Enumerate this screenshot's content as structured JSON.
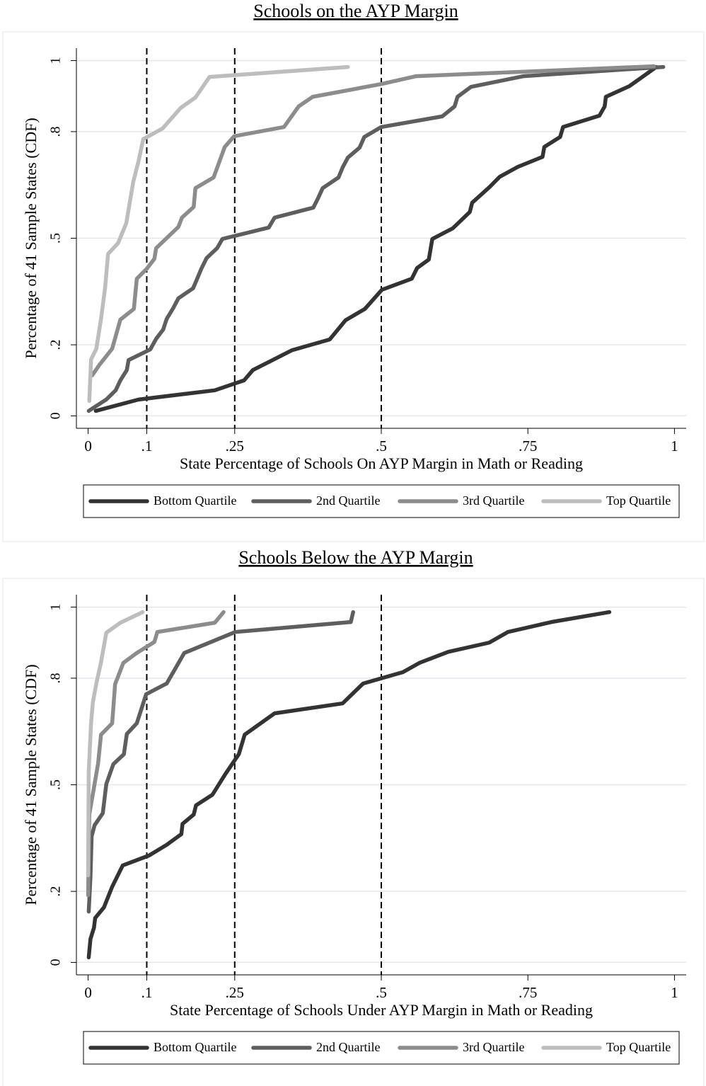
{
  "chart_data": [
    {
      "type": "line",
      "title": "Schools on the AYP Margin",
      "x_label": "State Percentage of Schools On AYP Margin in Math or Reading",
      "y_label": "Percentage of 41 Sample States (CDF)",
      "xlim": [
        -0.02,
        1.02
      ],
      "ylim": [
        -0.035,
        1.035
      ],
      "xticks": [
        0,
        {
          "value": 0.1,
          "label": ".1"
        },
        {
          "value": 0.25,
          "label": ".25"
        },
        {
          "value": 0.5,
          "label": ".5"
        },
        {
          "value": 0.75,
          "label": ".75"
        },
        1
      ],
      "yticks": [
        0,
        {
          "value": 0.2,
          "label": ".2"
        },
        {
          "value": 0.5,
          "label": ".5"
        },
        {
          "value": 0.8,
          "label": ".8"
        },
        1
      ],
      "xlines": [
        0.1,
        0.25,
        0.5
      ],
      "grid": true,
      "legend": "bottom",
      "series": [
        {
          "name": "Bottom Quartile",
          "color": "#333333",
          "x": [
            0.013,
            0.086,
            0.216,
            0.266,
            0.281,
            0.348,
            0.412,
            0.439,
            0.472,
            0.501,
            0.552,
            0.561,
            0.581,
            0.587,
            0.622,
            0.651,
            0.655,
            0.684,
            0.702,
            0.733,
            0.775,
            0.778,
            0.805,
            0.81,
            0.872,
            0.881,
            0.883,
            0.923,
            0.947,
            0.969
          ],
          "values": [
            0.014,
            0.046,
            0.072,
            0.1,
            0.129,
            0.185,
            0.215,
            0.269,
            0.301,
            0.355,
            0.386,
            0.416,
            0.44,
            0.498,
            0.528,
            0.574,
            0.6,
            0.643,
            0.673,
            0.701,
            0.729,
            0.757,
            0.785,
            0.813,
            0.845,
            0.871,
            0.898,
            0.928,
            0.956,
            0.982
          ]
        },
        {
          "name": "2nd Quartile",
          "color": "#5e5e5e",
          "x": [
            0.001,
            0.031,
            0.047,
            0.055,
            0.066,
            0.069,
            0.106,
            0.116,
            0.128,
            0.134,
            0.145,
            0.154,
            0.179,
            0.186,
            0.193,
            0.202,
            0.22,
            0.229,
            0.308,
            0.318,
            0.384,
            0.392,
            0.4,
            0.427,
            0.434,
            0.443,
            0.463,
            0.471,
            0.5,
            0.604,
            0.625,
            0.63,
            0.653,
            0.742,
            0.961,
            0.981
          ],
          "values": [
            0.014,
            0.046,
            0.072,
            0.1,
            0.129,
            0.157,
            0.187,
            0.217,
            0.243,
            0.273,
            0.303,
            0.331,
            0.359,
            0.386,
            0.414,
            0.444,
            0.472,
            0.498,
            0.53,
            0.558,
            0.586,
            0.612,
            0.641,
            0.671,
            0.699,
            0.727,
            0.755,
            0.785,
            0.813,
            0.843,
            0.871,
            0.898,
            0.926,
            0.956,
            0.98,
            0.982
          ]
        },
        {
          "name": "3rd Quartile",
          "color": "#8c8c8c",
          "x": [
            0.007,
            0.019,
            0.041,
            0.055,
            0.078,
            0.083,
            0.1,
            0.113,
            0.116,
            0.135,
            0.154,
            0.16,
            0.18,
            0.183,
            0.214,
            0.233,
            0.249,
            0.334,
            0.359,
            0.383,
            0.5,
            0.559,
            0.965
          ],
          "values": [
            0.114,
            0.143,
            0.189,
            0.271,
            0.301,
            0.386,
            0.414,
            0.442,
            0.472,
            0.502,
            0.532,
            0.558,
            0.588,
            0.641,
            0.671,
            0.757,
            0.787,
            0.813,
            0.871,
            0.898,
            0.934,
            0.956,
            0.984
          ]
        },
        {
          "name": "Top Quartile",
          "color": "#bdbdbd",
          "x": [
            0.002,
            0.005,
            0.014,
            0.022,
            0.029,
            0.034,
            0.051,
            0.065,
            0.077,
            0.086,
            0.094,
            0.127,
            0.158,
            0.183,
            0.207,
            0.443
          ],
          "values": [
            0.042,
            0.159,
            0.189,
            0.273,
            0.361,
            0.456,
            0.486,
            0.542,
            0.659,
            0.717,
            0.779,
            0.809,
            0.867,
            0.896,
            0.954,
            0.982
          ]
        }
      ]
    },
    {
      "type": "line",
      "title": "Schools Below the AYP Margin",
      "x_label": "State Percentage of Schools Under AYP Margin in Math or Reading",
      "y_label": "Percentage of 41 Sample States (CDF)",
      "xlim": [
        -0.02,
        1.02
      ],
      "ylim": [
        -0.035,
        1.035
      ],
      "xticks": [
        0,
        {
          "value": 0.1,
          "label": ".1"
        },
        {
          "value": 0.25,
          "label": ".25"
        },
        {
          "value": 0.5,
          "label": ".5"
        },
        {
          "value": 0.75,
          "label": ".75"
        },
        1
      ],
      "yticks": [
        0,
        {
          "value": 0.2,
          "label": ".2"
        },
        {
          "value": 0.5,
          "label": ".5"
        },
        {
          "value": 0.8,
          "label": ".8"
        },
        1
      ],
      "xlines": [
        0.1,
        0.25,
        0.5
      ],
      "grid": true,
      "legend": "bottom",
      "series": [
        {
          "name": "Bottom Quartile",
          "color": "#333333",
          "x": [
            0.001,
            0.004,
            0.01,
            0.012,
            0.027,
            0.041,
            0.059,
            0.104,
            0.134,
            0.159,
            0.161,
            0.18,
            0.184,
            0.212,
            0.234,
            0.257,
            0.267,
            0.318,
            0.434,
            0.469,
            0.537,
            0.565,
            0.614,
            0.684,
            0.716,
            0.79,
            0.889
          ],
          "values": [
            0.014,
            0.066,
            0.098,
            0.125,
            0.155,
            0.213,
            0.273,
            0.301,
            0.331,
            0.361,
            0.39,
            0.416,
            0.442,
            0.472,
            0.53,
            0.586,
            0.641,
            0.701,
            0.729,
            0.785,
            0.817,
            0.843,
            0.874,
            0.9,
            0.93,
            0.958,
            0.986
          ]
        },
        {
          "name": "2nd Quartile",
          "color": "#5e5e5e",
          "x": [
            0.001,
            0.004,
            0.006,
            0.011,
            0.025,
            0.031,
            0.043,
            0.061,
            0.066,
            0.083,
            0.099,
            0.134,
            0.164,
            0.251,
            0.448,
            0.452
          ],
          "values": [
            0.143,
            0.241,
            0.355,
            0.386,
            0.42,
            0.502,
            0.558,
            0.586,
            0.643,
            0.673,
            0.755,
            0.785,
            0.871,
            0.93,
            0.958,
            0.986
          ]
        },
        {
          "name": "3rd Quartile",
          "color": "#8c8c8c",
          "x": [
            0,
            0.002,
            0.011,
            0.017,
            0.022,
            0.041,
            0.046,
            0.06,
            0.083,
            0.113,
            0.118,
            0.216,
            0.231
          ],
          "values": [
            0.189,
            0.416,
            0.502,
            0.56,
            0.641,
            0.673,
            0.783,
            0.843,
            0.871,
            0.902,
            0.93,
            0.956,
            0.986
          ]
        },
        {
          "name": "Top Quartile",
          "color": "#bdbdbd",
          "x": [
            0,
            0.001,
            0.005,
            0.008,
            0.014,
            0.022,
            0.031,
            0.055,
            0.093
          ],
          "values": [
            0.245,
            0.536,
            0.673,
            0.731,
            0.785,
            0.845,
            0.928,
            0.956,
            0.986
          ]
        }
      ]
    }
  ]
}
